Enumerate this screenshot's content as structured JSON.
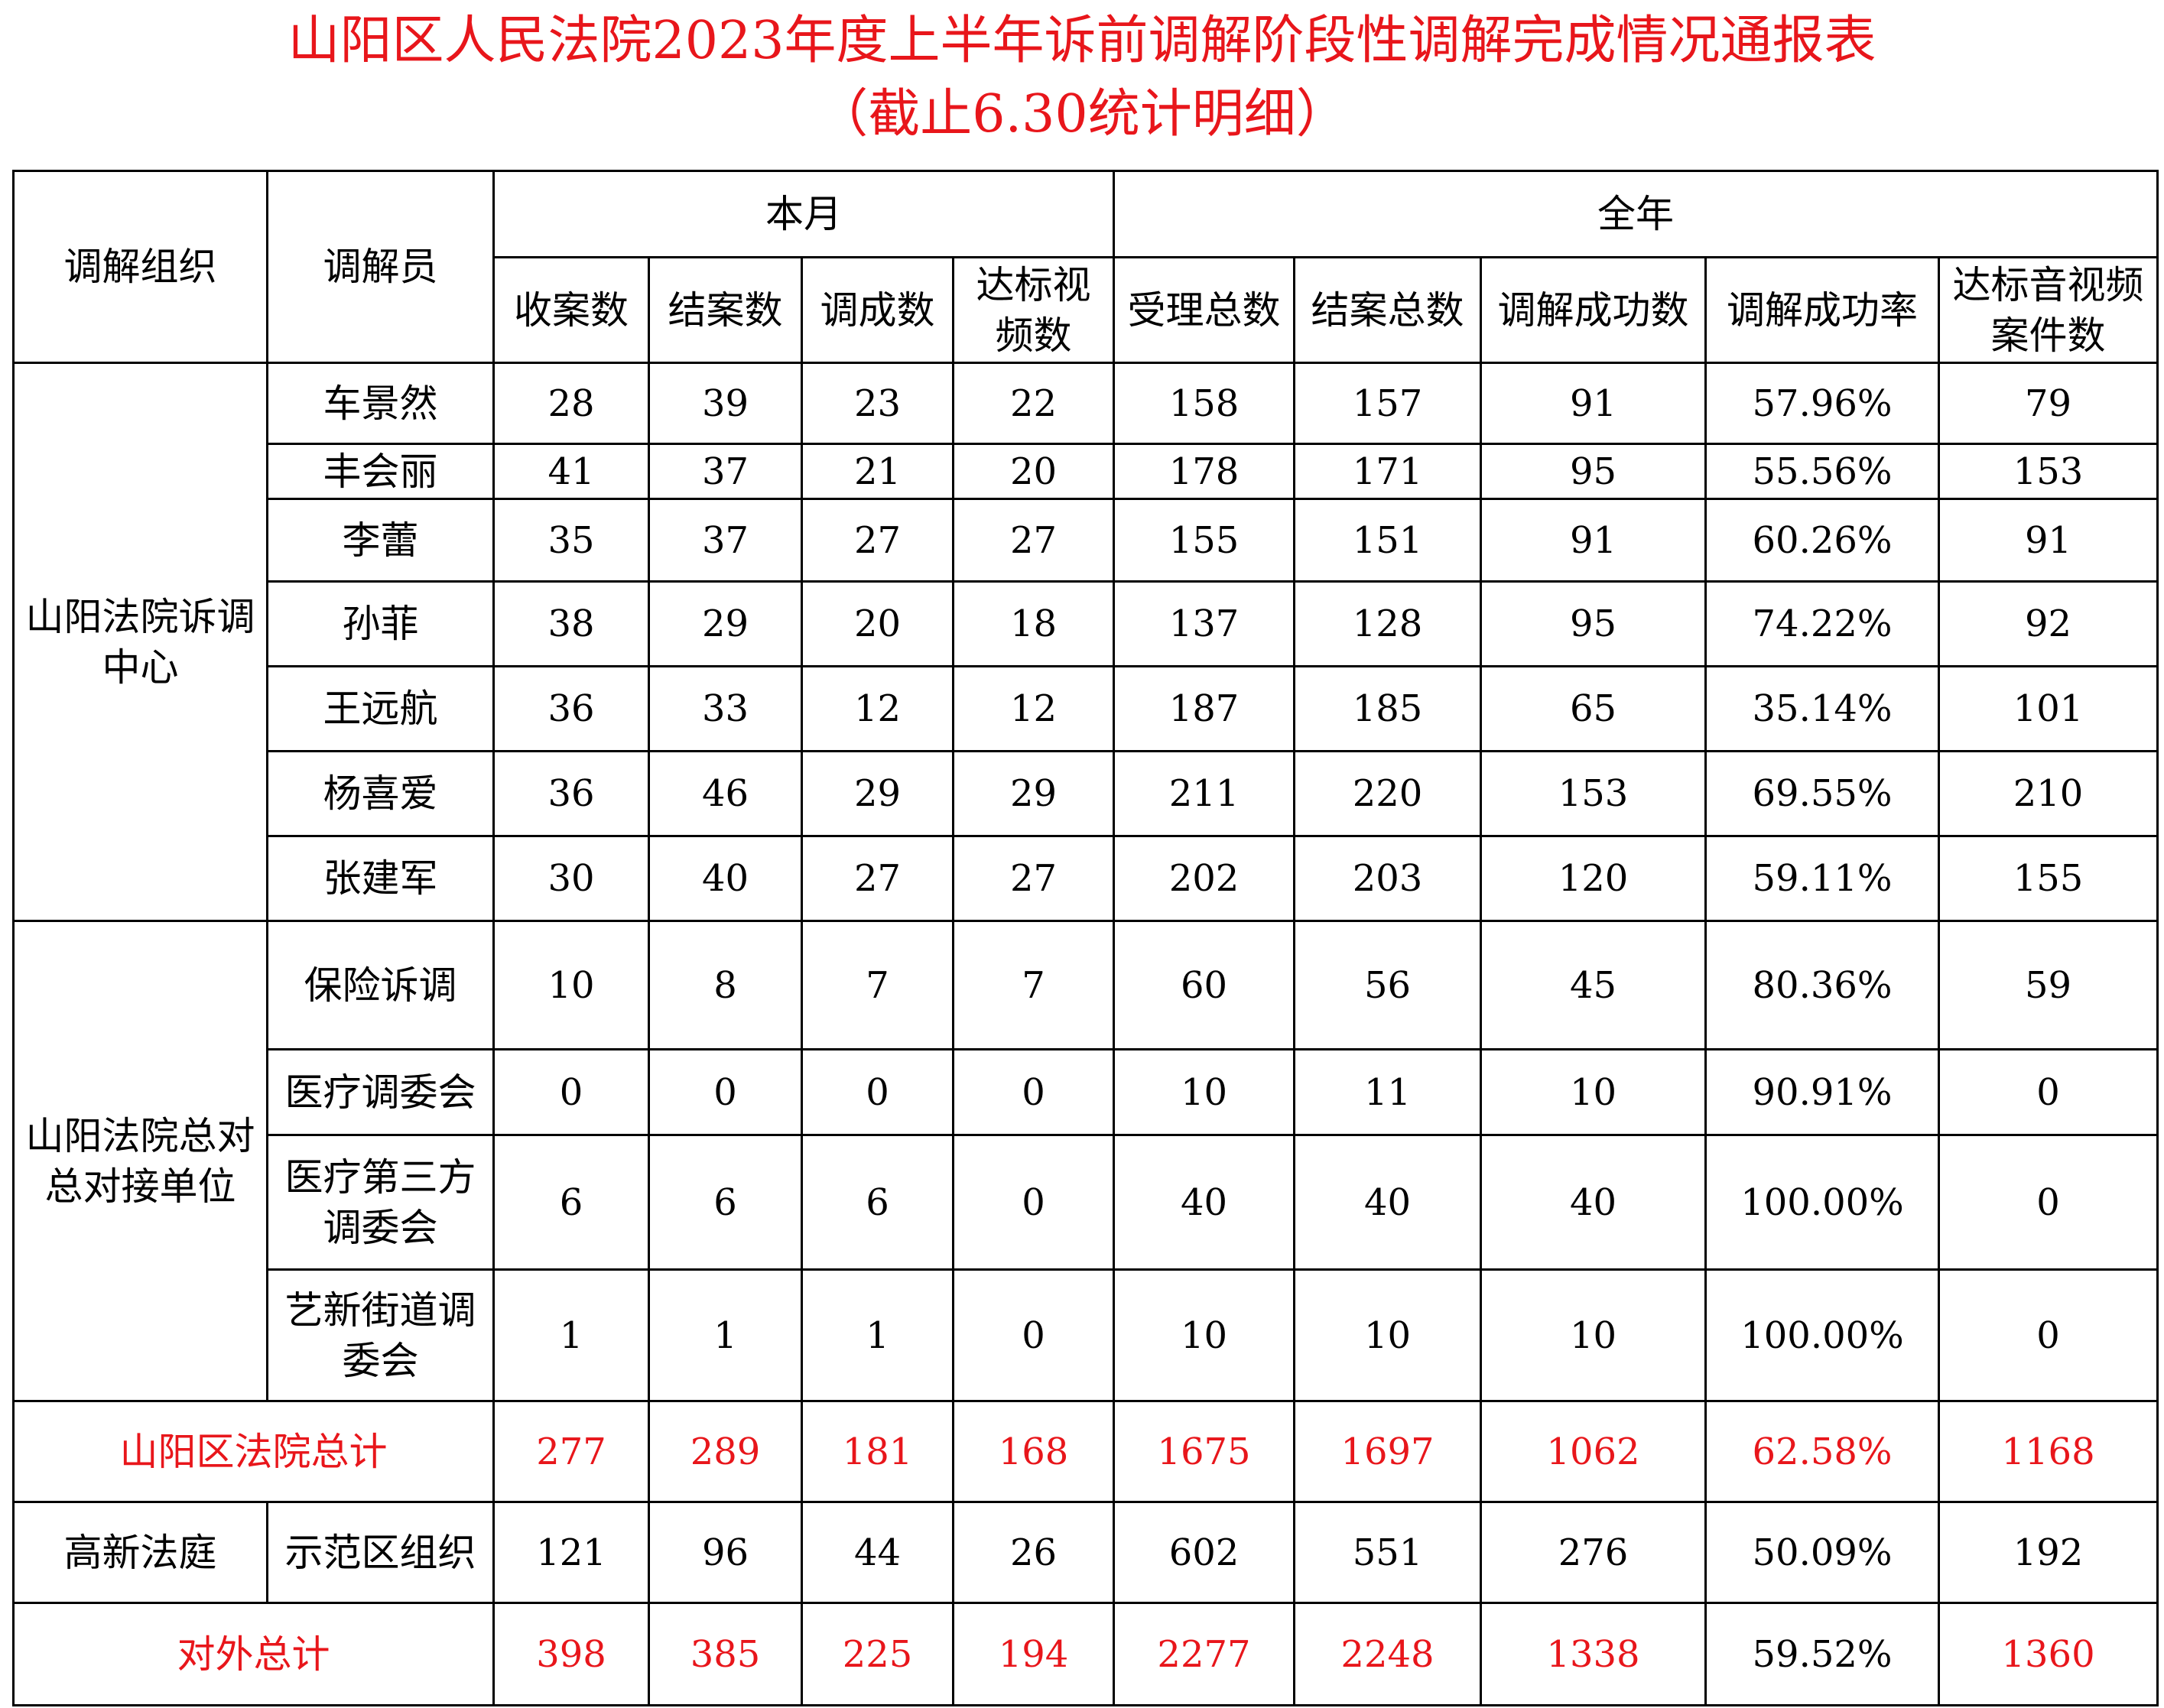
{
  "title": "山阳区人民法院2023年度上半年诉前调解阶段性调解完成情况通报表",
  "subtitle": "（截止6.30统计明细）",
  "headers": {
    "org": "调解组织",
    "mediator": "调解员",
    "month": "本月",
    "year": "全年",
    "month_cols": [
      "收案数",
      "结案数",
      "调成数",
      "达标视频数"
    ],
    "year_cols": [
      "受理总数",
      "结案总数",
      "调解成功数",
      "调解成功率",
      "达标音视频案件数"
    ]
  },
  "groups": [
    {
      "org": "山阳法院诉调中心",
      "rows": [
        {
          "name": "车景然",
          "values": [
            "28",
            "39",
            "23",
            "22",
            "158",
            "157",
            "91",
            "57.96%",
            "79"
          ]
        },
        {
          "name": "丰会丽",
          "values": [
            "41",
            "37",
            "21",
            "20",
            "178",
            "171",
            "95",
            "55.56%",
            "153"
          ]
        },
        {
          "name": "李蕾",
          "values": [
            "35",
            "37",
            "27",
            "27",
            "155",
            "151",
            "91",
            "60.26%",
            "91"
          ]
        },
        {
          "name": "孙菲",
          "values": [
            "38",
            "29",
            "20",
            "18",
            "137",
            "128",
            "95",
            "74.22%",
            "92"
          ]
        },
        {
          "name": "王远航",
          "values": [
            "36",
            "33",
            "12",
            "12",
            "187",
            "185",
            "65",
            "35.14%",
            "101"
          ]
        },
        {
          "name": "杨喜爱",
          "values": [
            "36",
            "46",
            "29",
            "29",
            "211",
            "220",
            "153",
            "69.55%",
            "210"
          ]
        },
        {
          "name": "张建军",
          "values": [
            "30",
            "40",
            "27",
            "27",
            "202",
            "203",
            "120",
            "59.11%",
            "155"
          ]
        }
      ]
    },
    {
      "org": "山阳法院总对总对接单位",
      "rows": [
        {
          "name": "保险诉调",
          "values": [
            "10",
            "8",
            "7",
            "7",
            "60",
            "56",
            "45",
            "80.36%",
            "59"
          ]
        },
        {
          "name": "医疗调委会",
          "values": [
            "0",
            "0",
            "0",
            "0",
            "10",
            "11",
            "10",
            "90.91%",
            "0"
          ]
        },
        {
          "name": "医疗第三方调委会",
          "values": [
            "6",
            "6",
            "6",
            "0",
            "40",
            "40",
            "40",
            "100.00%",
            "0"
          ]
        },
        {
          "name": "艺新街道调委会",
          "values": [
            "1",
            "1",
            "1",
            "0",
            "10",
            "10",
            "10",
            "100.00%",
            "0"
          ]
        }
      ]
    }
  ],
  "court_total": {
    "label": "山阳区法院总计",
    "values": [
      "277",
      "289",
      "181",
      "168",
      "1675",
      "1697",
      "1062",
      "62.58%",
      "1168"
    ]
  },
  "gaoxin": {
    "org": "高新法庭",
    "name": "示范区组织",
    "values": [
      "121",
      "96",
      "44",
      "26",
      "602",
      "551",
      "276",
      "50.09%",
      "192"
    ]
  },
  "external_total": {
    "label": "对外总计",
    "values": [
      "398",
      "385",
      "225",
      "194",
      "2277",
      "2248",
      "1338",
      "59.52%",
      "1360"
    ]
  },
  "colors": {
    "accent_red": "#e8161b",
    "border": "#000000"
  }
}
